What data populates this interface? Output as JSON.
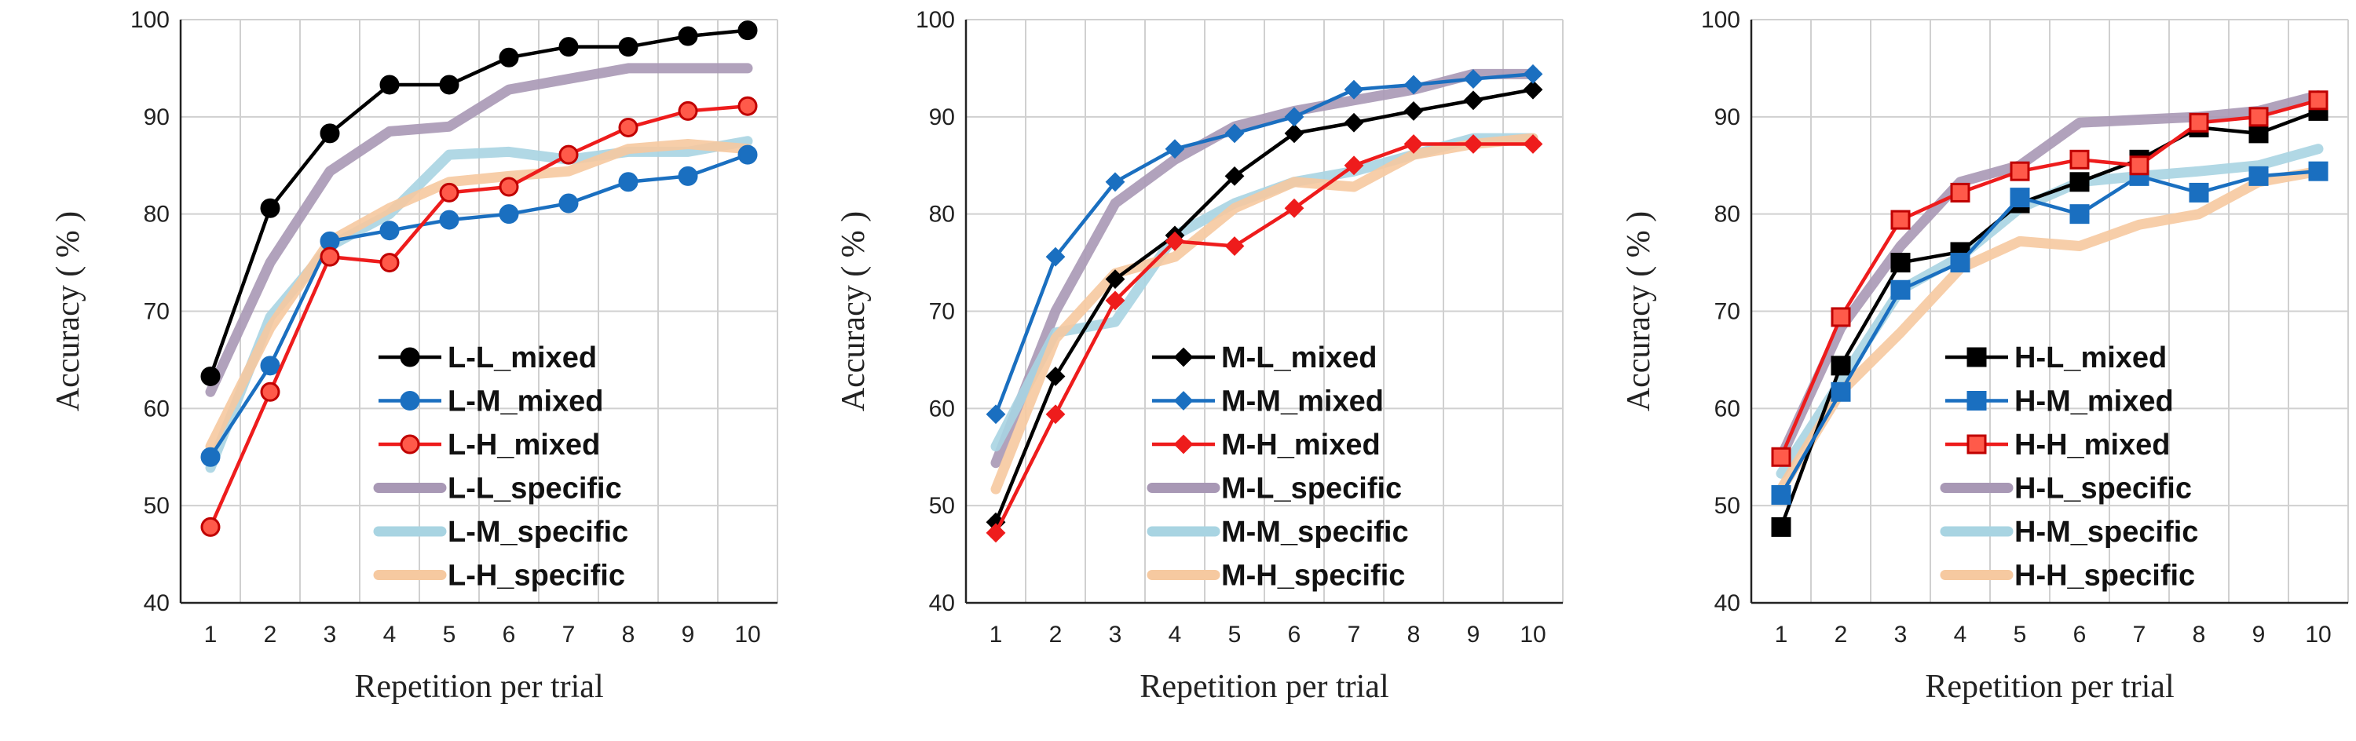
{
  "chart_data": [
    {
      "type": "line",
      "xlabel": "Repetition per trial",
      "ylabel": "Accuracy ( % )",
      "ylim": [
        40,
        100
      ],
      "yticks": [
        40,
        50,
        60,
        70,
        80,
        90,
        100
      ],
      "x": [
        1,
        2,
        3,
        4,
        5,
        6,
        7,
        8,
        9,
        10
      ],
      "grid": "vertical and horizontal gridlines",
      "legend": "bottom-right",
      "series": [
        {
          "name": "L-L_mixed",
          "color": "#000000",
          "marker": "circle",
          "style": "marker-line",
          "values": [
            63.3,
            80.6,
            88.3,
            93.3,
            93.3,
            96.1,
            97.2,
            97.2,
            98.3,
            98.9
          ]
        },
        {
          "name": "L-M_mixed",
          "color": "#1a6fc0",
          "marker": "circle",
          "style": "marker-line",
          "values": [
            55.0,
            64.4,
            77.2,
            78.3,
            79.4,
            80.0,
            81.1,
            83.3,
            83.9,
            86.1
          ]
        },
        {
          "name": "L-H_mixed",
          "color": "#ee1c1c",
          "marker": "circle",
          "style": "marker-line",
          "values": [
            47.8,
            61.7,
            75.6,
            75.0,
            82.2,
            82.8,
            86.1,
            88.9,
            90.6,
            91.1
          ]
        },
        {
          "name": "L-L_specific",
          "color": "#a898b5",
          "style": "band",
          "values": [
            61.7,
            75.0,
            84.4,
            88.5,
            89.0,
            92.8,
            93.9,
            95.0,
            95.0,
            95.0
          ]
        },
        {
          "name": "L-M_specific",
          "color": "#a8d4e2",
          "style": "band",
          "values": [
            53.9,
            69.4,
            76.7,
            80.0,
            86.1,
            86.4,
            85.6,
            86.4,
            86.4,
            87.5
          ]
        },
        {
          "name": "L-H_specific",
          "color": "#f6c9a0",
          "style": "band",
          "values": [
            56.1,
            68.3,
            77.2,
            80.6,
            83.3,
            83.9,
            84.4,
            86.7,
            87.2,
            86.7
          ]
        }
      ]
    },
    {
      "type": "line",
      "xlabel": "Repetition per trial",
      "ylabel": "Accuracy ( % )",
      "ylim": [
        40,
        100
      ],
      "yticks": [
        40,
        50,
        60,
        70,
        80,
        90,
        100
      ],
      "x": [
        1,
        2,
        3,
        4,
        5,
        6,
        7,
        8,
        9,
        10
      ],
      "grid": "vertical and horizontal gridlines",
      "legend": "bottom-right",
      "series": [
        {
          "name": "M-L_mixed",
          "color": "#000000",
          "marker": "diamond",
          "style": "marker-line",
          "values": [
            48.3,
            63.3,
            73.3,
            77.8,
            83.9,
            88.3,
            89.4,
            90.6,
            91.7,
            92.8
          ]
        },
        {
          "name": "M-M_mixed",
          "color": "#1a6fc0",
          "marker": "diamond",
          "style": "marker-line",
          "values": [
            59.4,
            75.6,
            83.3,
            86.7,
            88.3,
            90.0,
            92.8,
            93.3,
            93.9,
            94.4
          ]
        },
        {
          "name": "M-H_mixed",
          "color": "#ee1c1c",
          "marker": "diamond",
          "style": "marker-line",
          "values": [
            47.2,
            59.4,
            71.1,
            77.2,
            76.7,
            80.6,
            85.0,
            87.2,
            87.2,
            87.2
          ]
        },
        {
          "name": "M-L_specific",
          "color": "#a898b5",
          "style": "band",
          "values": [
            54.4,
            70.0,
            81.1,
            85.6,
            89.0,
            90.6,
            91.7,
            92.8,
            94.4,
            94.4
          ]
        },
        {
          "name": "M-M_specific",
          "color": "#a8d4e2",
          "style": "band",
          "values": [
            56.1,
            67.8,
            68.9,
            77.8,
            81.1,
            83.3,
            84.4,
            86.1,
            87.8,
            87.8
          ]
        },
        {
          "name": "M-H_specific",
          "color": "#f6c9a0",
          "style": "band",
          "values": [
            51.7,
            67.2,
            73.9,
            75.6,
            80.6,
            83.3,
            82.8,
            86.1,
            87.2,
            87.8
          ]
        }
      ]
    },
    {
      "type": "line",
      "xlabel": "Repetition per trial",
      "ylabel": "Accuracy ( % )",
      "ylim": [
        40,
        100
      ],
      "yticks": [
        40,
        50,
        60,
        70,
        80,
        90,
        100
      ],
      "x": [
        1,
        2,
        3,
        4,
        5,
        6,
        7,
        8,
        9,
        10
      ],
      "grid": "vertical and horizontal gridlines",
      "legend": "bottom-right",
      "series": [
        {
          "name": "H-L_mixed",
          "color": "#000000",
          "marker": "square",
          "style": "marker-line",
          "values": [
            47.8,
            64.4,
            75.0,
            76.1,
            81.1,
            83.3,
            85.6,
            88.9,
            88.3,
            90.6
          ]
        },
        {
          "name": "H-M_mixed",
          "color": "#1a6fc0",
          "marker": "square",
          "style": "marker-line",
          "values": [
            51.1,
            61.7,
            72.2,
            75.0,
            81.7,
            80.0,
            83.9,
            82.2,
            83.9,
            84.4
          ]
        },
        {
          "name": "H-H_mixed",
          "color": "#ee1c1c",
          "marker": "square",
          "style": "marker-line",
          "values": [
            55.0,
            69.4,
            79.4,
            82.2,
            84.4,
            85.6,
            85.0,
            89.4,
            90.0,
            91.7
          ]
        },
        {
          "name": "H-L_specific",
          "color": "#a898b5",
          "style": "band",
          "values": [
            55.0,
            68.3,
            76.7,
            83.3,
            85.0,
            89.4,
            89.7,
            90.0,
            90.6,
            92.2
          ]
        },
        {
          "name": "H-M_specific",
          "color": "#a8d4e2",
          "style": "band",
          "values": [
            53.3,
            62.8,
            72.2,
            75.6,
            80.6,
            83.3,
            83.9,
            84.4,
            85.0,
            86.7
          ]
        },
        {
          "name": "H-H_specific",
          "color": "#f6c9a0",
          "style": "band",
          "values": [
            51.7,
            61.7,
            67.8,
            74.4,
            77.2,
            76.7,
            78.9,
            80.0,
            83.3,
            84.4
          ]
        }
      ]
    }
  ]
}
